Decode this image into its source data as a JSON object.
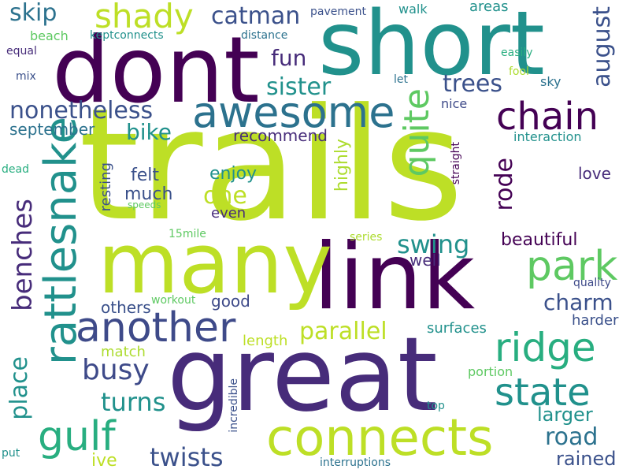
{
  "background": "#ffffff",
  "palette": [
    "#bddf26",
    "#440154",
    "#472c7a",
    "#3b518b",
    "#2c728e",
    "#21918c",
    "#28ae80",
    "#5ec962",
    "#addc30"
  ],
  "words": [
    "trails",
    "dont",
    "short",
    "great",
    "link",
    "many",
    "connects",
    "another",
    "awesome",
    "rattlesnake",
    "shady",
    "chain",
    "park",
    "ridge",
    "state",
    "quite",
    "gulf",
    "busy",
    "twists",
    "benches",
    "place",
    "catman",
    "skip",
    "fun",
    "sister",
    "trees",
    "august",
    "nonetheless",
    "bike",
    "september",
    "one",
    "much",
    "felt",
    "enjoy",
    "even",
    "rode",
    "resting",
    "highly",
    "recommend",
    "love",
    "swing",
    "parallel",
    "beautiful",
    "well",
    "charm",
    "others",
    "good",
    "harder",
    "surfaces",
    "length",
    "match",
    "turns",
    "larger",
    "road",
    "rained",
    "ive",
    "interruptions",
    "incredible",
    "portion",
    "top",
    "beach",
    "keptconnects",
    "distance",
    "pavement",
    "walk",
    "areas",
    "equal",
    "mix",
    "easily",
    "fool",
    "let",
    "nice",
    "sky",
    "interaction",
    "straight",
    "dead",
    "speeds",
    "15mile",
    "series",
    "workout",
    "quality",
    "put"
  ]
}
